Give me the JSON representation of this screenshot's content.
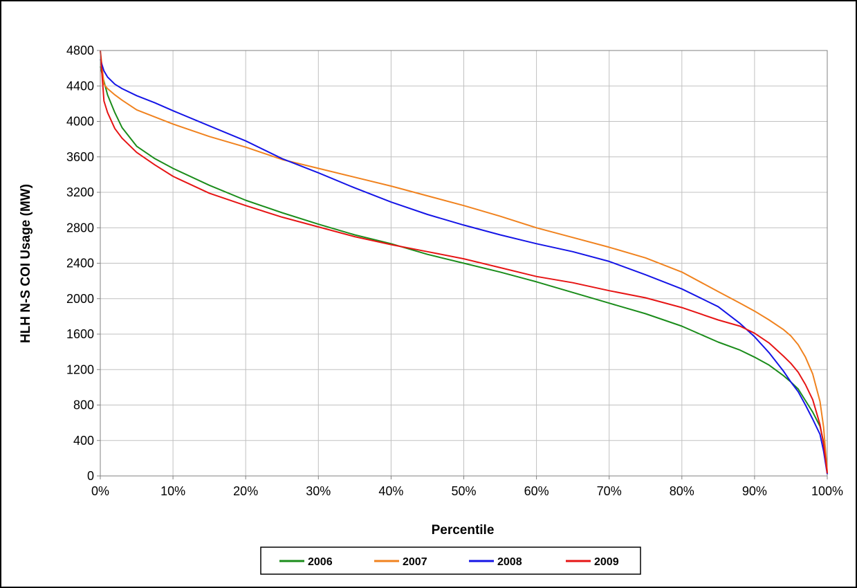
{
  "chart_data": {
    "type": "line",
    "title": "",
    "xlabel": "Percentile",
    "ylabel": "HLH N-S COI Usage (MW)",
    "xlim": [
      0,
      100
    ],
    "ylim": [
      0,
      4800
    ],
    "x_ticks": [
      "0%",
      "10%",
      "20%",
      "30%",
      "40%",
      "50%",
      "60%",
      "70%",
      "80%",
      "90%",
      "100%"
    ],
    "y_ticks": [
      "0",
      "400",
      "800",
      "1200",
      "1600",
      "2000",
      "2400",
      "2800",
      "3200",
      "3600",
      "4000",
      "4400",
      "4800"
    ],
    "x_tick_values": [
      0,
      10,
      20,
      30,
      40,
      50,
      60,
      70,
      80,
      90,
      100
    ],
    "y_tick_values": [
      0,
      400,
      800,
      1200,
      1600,
      2000,
      2400,
      2800,
      3200,
      3600,
      4000,
      4400,
      4800
    ],
    "grid": true,
    "legend_position": "bottom",
    "series": [
      {
        "name": "2006",
        "color": "#1a8c1a",
        "x": [
          0,
          0.5,
          1,
          2,
          3,
          5,
          7.5,
          10,
          15,
          20,
          25,
          30,
          35,
          40,
          45,
          50,
          55,
          60,
          65,
          70,
          75,
          80,
          85,
          88,
          90,
          92,
          94,
          95,
          96,
          97,
          98,
          99,
          99.5,
          100
        ],
        "y": [
          4620,
          4450,
          4300,
          4100,
          3930,
          3720,
          3580,
          3470,
          3280,
          3110,
          2970,
          2840,
          2720,
          2620,
          2500,
          2400,
          2300,
          2190,
          2070,
          1950,
          1830,
          1690,
          1510,
          1420,
          1340,
          1250,
          1130,
          1060,
          980,
          850,
          720,
          560,
          380,
          30
        ]
      },
      {
        "name": "2007",
        "color": "#f0821e",
        "x": [
          0,
          0.5,
          1,
          2,
          3,
          5,
          7.5,
          10,
          15,
          20,
          25,
          30,
          35,
          40,
          45,
          50,
          55,
          60,
          65,
          70,
          75,
          80,
          85,
          88,
          90,
          92,
          94,
          95,
          96,
          97,
          98,
          99,
          99.5,
          100
        ],
        "y": [
          4800,
          4420,
          4370,
          4300,
          4240,
          4130,
          4050,
          3970,
          3830,
          3710,
          3570,
          3470,
          3370,
          3270,
          3160,
          3050,
          2930,
          2800,
          2690,
          2580,
          2460,
          2300,
          2080,
          1950,
          1860,
          1760,
          1650,
          1580,
          1480,
          1340,
          1150,
          840,
          550,
          50
        ]
      },
      {
        "name": "2008",
        "color": "#1414e6",
        "x": [
          0,
          0.5,
          1,
          2,
          3,
          5,
          7.5,
          10,
          15,
          20,
          25,
          30,
          35,
          40,
          45,
          50,
          55,
          60,
          65,
          70,
          75,
          80,
          85,
          88,
          90,
          92,
          94,
          95,
          96,
          97,
          98,
          99,
          99.5,
          100
        ],
        "y": [
          4700,
          4570,
          4500,
          4420,
          4370,
          4290,
          4210,
          4120,
          3950,
          3780,
          3580,
          3420,
          3250,
          3090,
          2950,
          2830,
          2720,
          2620,
          2530,
          2420,
          2270,
          2110,
          1910,
          1720,
          1570,
          1390,
          1180,
          1060,
          950,
          800,
          640,
          470,
          280,
          20
        ]
      },
      {
        "name": "2009",
        "color": "#e61414",
        "x": [
          0,
          0.5,
          1,
          2,
          3,
          5,
          7.5,
          10,
          15,
          20,
          25,
          30,
          35,
          40,
          45,
          50,
          55,
          60,
          65,
          70,
          75,
          80,
          85,
          88,
          90,
          92,
          94,
          95,
          96,
          97,
          98,
          99,
          99.5,
          100
        ],
        "y": [
          4800,
          4230,
          4100,
          3920,
          3810,
          3650,
          3510,
          3380,
          3190,
          3050,
          2920,
          2810,
          2700,
          2610,
          2530,
          2450,
          2350,
          2250,
          2180,
          2090,
          2010,
          1900,
          1760,
          1690,
          1610,
          1500,
          1350,
          1270,
          1170,
          1030,
          860,
          580,
          360,
          30
        ]
      }
    ]
  }
}
